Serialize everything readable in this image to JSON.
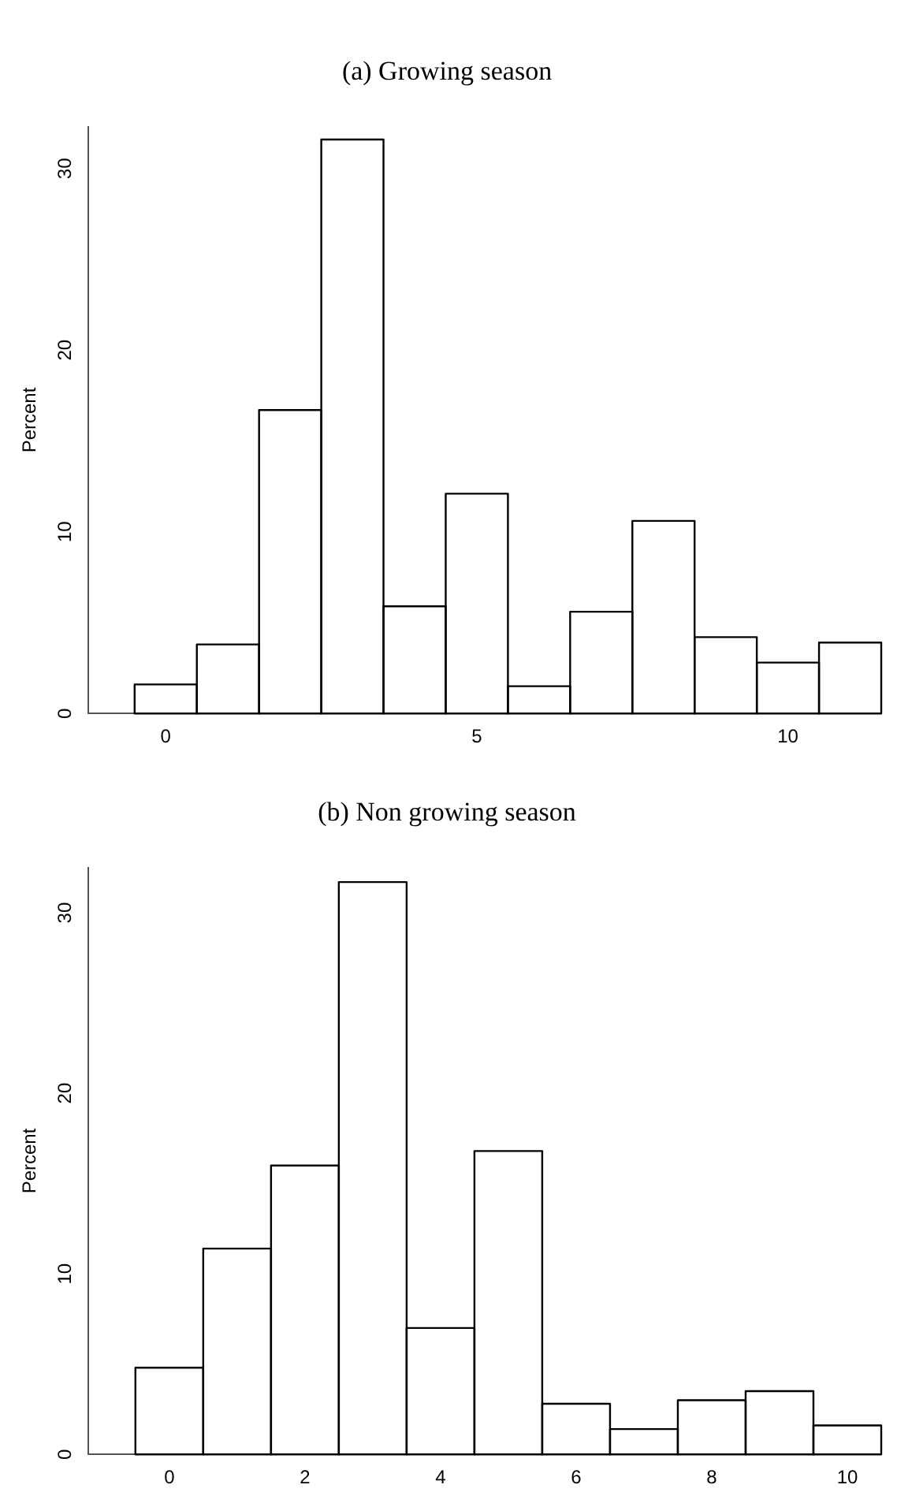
{
  "chart_data": [
    {
      "type": "histogram",
      "title": "(a) Growing season",
      "ylabel": "Percent",
      "color": "#000000",
      "bins": [
        -0.5,
        0.5,
        1.5,
        2.5,
        3.5,
        4.5,
        5.5,
        6.5,
        7.5,
        8.5,
        9.5,
        10.5,
        11.5
      ],
      "values": [
        1.6,
        3.8,
        16.7,
        31.6,
        5.9,
        12.1,
        1.5,
        5.6,
        10.6,
        4.2,
        2.8,
        3.9
      ],
      "xlim": [
        -1.25,
        11.5
      ],
      "xticks": [
        0,
        5,
        10
      ],
      "ylim": [
        0,
        32.3
      ],
      "yticks": [
        0,
        10,
        20,
        30
      ]
    },
    {
      "type": "histogram",
      "title": "(b) Non growing season",
      "ylabel": "Percent",
      "color": "#000000",
      "bins": [
        -0.5,
        0.5,
        1.5,
        2.5,
        3.5,
        4.5,
        5.5,
        6.5,
        7.5,
        8.5,
        9.5,
        10.5
      ],
      "values": [
        4.8,
        11.4,
        16.0,
        31.7,
        7.0,
        16.8,
        2.8,
        1.4,
        3.0,
        3.5,
        1.6
      ],
      "xlim": [
        -1.2,
        10.5
      ],
      "xticks": [
        0,
        2,
        4,
        6,
        8,
        10
      ],
      "ylim": [
        0,
        32.5
      ],
      "yticks": [
        0,
        10,
        20,
        30
      ]
    }
  ]
}
